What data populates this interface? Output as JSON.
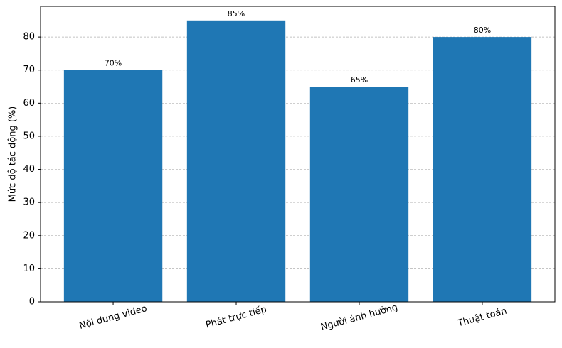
{
  "chart_data": {
    "type": "bar",
    "y_label": "Mức độ tác động (%)",
    "categories": [
      "Nội dung video",
      "Phát trực tiếp",
      "Người ảnh hưởng",
      "Thuật toán"
    ],
    "values": [
      70,
      85,
      65,
      80
    ],
    "value_labels": [
      "70%",
      "85%",
      "65%",
      "80%"
    ],
    "color": "#1f77b4",
    "ylim": [
      0,
      89.25
    ],
    "yticks": [
      0,
      10,
      20,
      30,
      40,
      50,
      60,
      70,
      80
    ],
    "grid": true
  }
}
